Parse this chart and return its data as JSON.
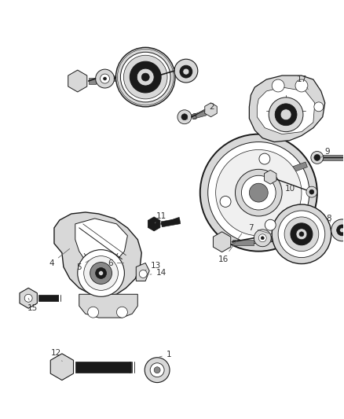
{
  "bg_color": "#ffffff",
  "fig_width": 4.38,
  "fig_height": 5.33,
  "dpi": 100,
  "line_color": "#1a1a1a",
  "fill_dark": "#1a1a1a",
  "fill_mid": "#888888",
  "fill_light": "#d8d8d8",
  "fill_white": "#ffffff",
  "label_color": "#333333",
  "leader_color": "#666666"
}
